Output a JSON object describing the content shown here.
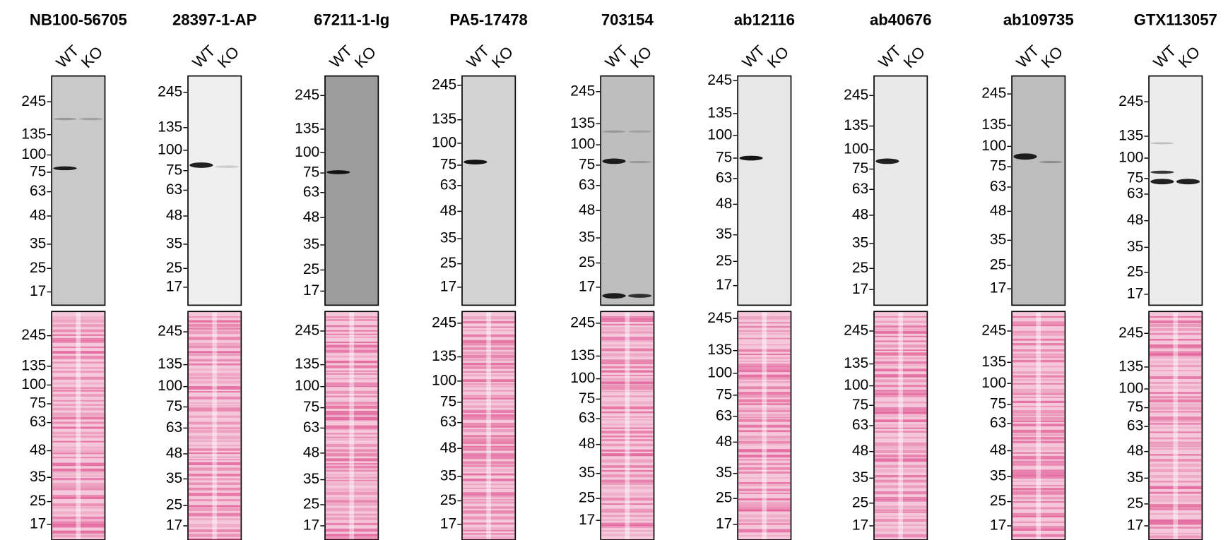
{
  "panels": [
    {
      "antibody": "NB100-56705"
    },
    {
      "antibody": "28397-1-AP"
    },
    {
      "antibody": "67211-1-Ig"
    },
    {
      "antibody": "PA5-17478"
    },
    {
      "antibody": "703154"
    },
    {
      "antibody": "ab12116"
    },
    {
      "antibody": "ab40676"
    },
    {
      "antibody": "ab109735"
    },
    {
      "antibody": "GTX113057"
    }
  ],
  "lanes": [
    "WT",
    "KO"
  ],
  "markers": [
    "245",
    "135",
    "100",
    "75",
    "63",
    "48",
    "35",
    "25",
    "17"
  ]
}
